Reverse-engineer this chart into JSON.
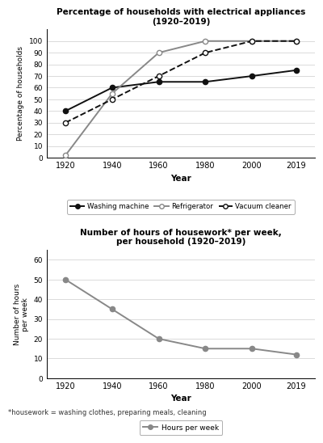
{
  "years": [
    1920,
    1940,
    1960,
    1980,
    2000,
    2019
  ],
  "washing_machine": [
    40,
    60,
    65,
    65,
    70,
    75
  ],
  "refrigerator": [
    2,
    55,
    90,
    100,
    100,
    100
  ],
  "vacuum_cleaner": [
    30,
    50,
    70,
    90,
    100,
    100
  ],
  "hours_per_week": [
    50,
    35,
    20,
    15,
    15,
    12
  ],
  "title1": "Percentage of households with electrical appliances\n(1920–2019)",
  "title2": "Number of hours of housework* per week,\nper household (1920–2019)",
  "ylabel1": "Percentage of households",
  "ylabel2": "Number of hours\nper week",
  "xlabel": "Year",
  "footnote": "*housework = washing clothes, preparing meals, cleaning",
  "ylim1": [
    0,
    110
  ],
  "ylim2": [
    0,
    65
  ],
  "yticks1": [
    0,
    10,
    20,
    30,
    40,
    50,
    60,
    70,
    80,
    90,
    100
  ],
  "yticks2": [
    0,
    10,
    20,
    30,
    40,
    50,
    60
  ],
  "color_wm": "#111111",
  "color_ref": "#888888",
  "color_vc": "#444444",
  "color_hours": "#888888",
  "bg_color": "#ffffff",
  "xlim": [
    1912,
    2027
  ]
}
